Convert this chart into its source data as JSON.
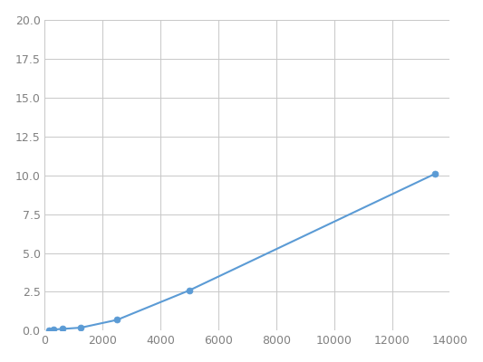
{
  "x": [
    156,
    312,
    625,
    1250,
    2500,
    5000,
    13500
  ],
  "y": [
    0.05,
    0.08,
    0.12,
    0.2,
    0.7,
    2.6,
    10.1
  ],
  "line_color": "#5b9bd5",
  "marker_color": "#5b9bd5",
  "marker_size": 5,
  "xlim": [
    0,
    14000
  ],
  "ylim": [
    0.0,
    20.0
  ],
  "xticks": [
    0,
    2000,
    4000,
    6000,
    8000,
    10000,
    12000,
    14000
  ],
  "yticks": [
    0.0,
    2.5,
    5.0,
    7.5,
    10.0,
    12.5,
    15.0,
    17.5,
    20.0
  ],
  "grid_color": "#c8c8c8",
  "background_color": "#ffffff",
  "tick_label_color": "#808080",
  "tick_label_size": 9,
  "linewidth": 1.5
}
